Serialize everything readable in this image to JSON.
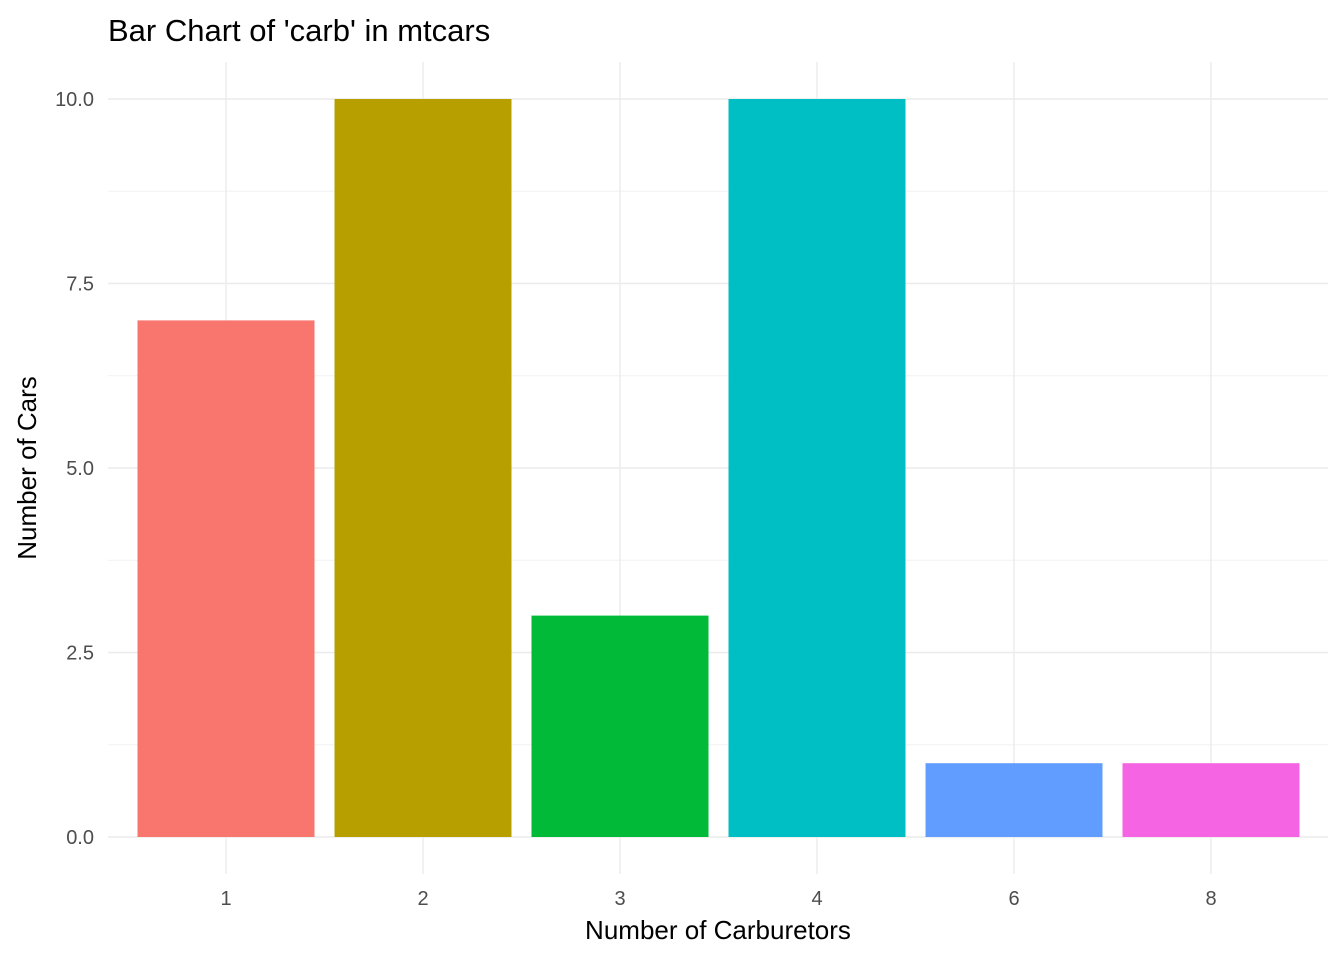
{
  "chart_data": {
    "type": "bar",
    "title": "Bar Chart of 'carb' in mtcars",
    "xlabel": "Number of Carburetors",
    "ylabel": "Number of Cars",
    "categories": [
      "1",
      "2",
      "3",
      "4",
      "6",
      "8"
    ],
    "values": [
      7,
      10,
      3,
      10,
      1,
      1
    ],
    "colors": [
      "#F8766D",
      "#B79F00",
      "#00BA38",
      "#00BFC4",
      "#619CFF",
      "#F564E3"
    ],
    "ylim": [
      0,
      10
    ],
    "y_ticks": [
      "0.0",
      "2.5",
      "5.0",
      "7.5",
      "10.0"
    ],
    "y_tick_values": [
      0,
      2.5,
      5,
      7.5,
      10
    ],
    "grid": true,
    "legend": "none"
  }
}
